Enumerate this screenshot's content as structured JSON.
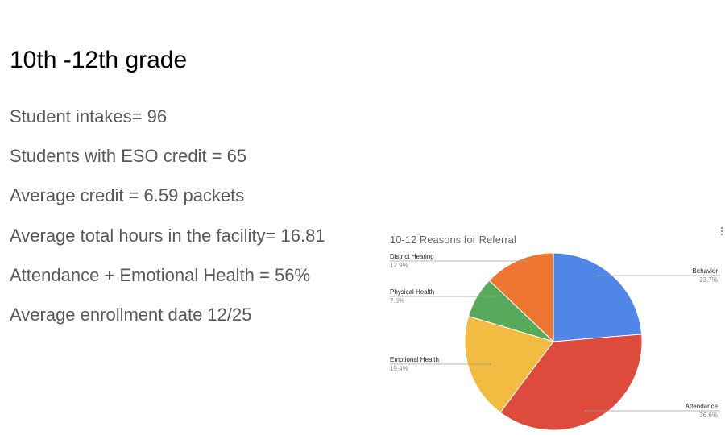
{
  "slide": {
    "title": "10th -12th grade",
    "stats": [
      "Student intakes= 96",
      "Students with ESO credit = 65",
      "Average credit = 6.59 packets",
      "Average total hours in the facility= 16.81",
      "Attendance + Emotional Health = 56%",
      "Average enrollment date 12/25"
    ]
  },
  "chart_menu_icon": "more-vert-icon",
  "chart_data": {
    "type": "pie",
    "title": "10-12 Reasons for Referral",
    "slices": [
      {
        "label": "Behavior",
        "value": 23.7,
        "pct_label": "23.7%",
        "color": "#4f86e8"
      },
      {
        "label": "Attendance",
        "value": 36.6,
        "pct_label": "36.6%",
        "color": "#dc4b3c"
      },
      {
        "label": "Emotional Health",
        "value": 19.4,
        "pct_label": "19.4%",
        "color": "#f2bb41"
      },
      {
        "label": "Physical Health",
        "value": 7.5,
        "pct_label": "7.5%",
        "color": "#57a95c"
      },
      {
        "label": "District Hearing",
        "value": 12.9,
        "pct_label": "12.9%",
        "color": "#ee7633"
      }
    ],
    "start_angle_deg": 0,
    "direction": "clockwise",
    "legend": "labels"
  }
}
